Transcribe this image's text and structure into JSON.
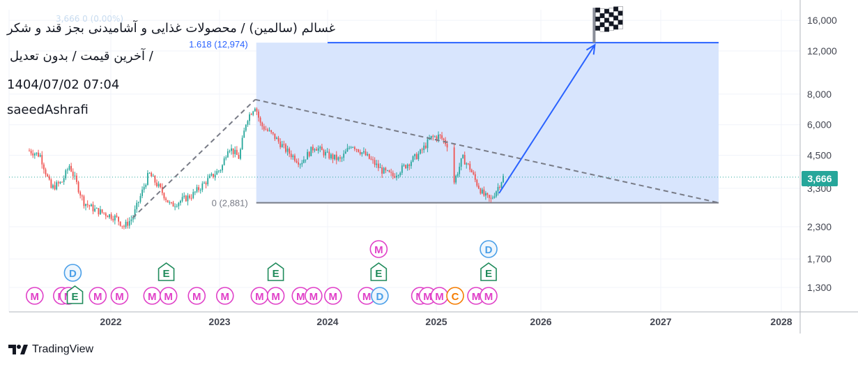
{
  "header": {
    "title": "غسالم (سالمین) / محصولات غذایی و آشامیدنی بجز قند و شکر",
    "subtitle": "آخرین قیمت / بدون تعدیل /",
    "datetime": "1404/07/02 07:04",
    "author": "saeedAshrafi"
  },
  "ghost_legend": "3,666  0  (0.00%)",
  "current_price_label": "3,666",
  "branding": {
    "name": "TradingView"
  },
  "colors": {
    "up": "#26a69a",
    "down": "#ef5350",
    "fib_fill": "#d6e4fd",
    "fib_line": "#2962ff",
    "trend_line": "#787b86",
    "marker_m": "#e040c8",
    "marker_e": "#1e8a5a",
    "marker_d": "#4a9fe8",
    "marker_c": "#f57c00"
  },
  "chart_data": {
    "type": "candlestick",
    "title": "",
    "xlabel": "",
    "ylabel": "",
    "y_scale": "log",
    "ylim": [
      1100,
      16500
    ],
    "x_ticks": [
      "2022",
      "2023",
      "2024",
      "2025",
      "2026",
      "2027",
      "2028"
    ],
    "y_ticks": [
      "1,300",
      "1,700",
      "2,300",
      "3,300",
      "4,500",
      "6,000",
      "8,000",
      "12,000",
      "16,000"
    ],
    "series": [
      {
        "name": "",
        "points": [
          {
            "t": 2021.25,
            "v": 4700
          },
          {
            "t": 2021.35,
            "v": 4500
          },
          {
            "t": 2021.45,
            "v": 3300
          },
          {
            "t": 2021.55,
            "v": 3500
          },
          {
            "t": 2021.62,
            "v": 4100
          },
          {
            "t": 2021.75,
            "v": 2900
          },
          {
            "t": 2021.85,
            "v": 2700
          },
          {
            "t": 2021.95,
            "v": 2600
          },
          {
            "t": 2022.05,
            "v": 2500
          },
          {
            "t": 2022.12,
            "v": 2300
          },
          {
            "t": 2022.2,
            "v": 2500
          },
          {
            "t": 2022.35,
            "v": 3800
          },
          {
            "t": 2022.45,
            "v": 3300
          },
          {
            "t": 2022.55,
            "v": 2800
          },
          {
            "t": 2022.65,
            "v": 2950
          },
          {
            "t": 2022.75,
            "v": 3100
          },
          {
            "t": 2022.9,
            "v": 3600
          },
          {
            "t": 2023.02,
            "v": 4000
          },
          {
            "t": 2023.08,
            "v": 4900
          },
          {
            "t": 2023.18,
            "v": 4400
          },
          {
            "t": 2023.25,
            "v": 6300
          },
          {
            "t": 2023.33,
            "v": 7200
          },
          {
            "t": 2023.38,
            "v": 6000
          },
          {
            "t": 2023.5,
            "v": 5400
          },
          {
            "t": 2023.62,
            "v": 4700
          },
          {
            "t": 2023.75,
            "v": 4200
          },
          {
            "t": 2023.88,
            "v": 4900
          },
          {
            "t": 2024.0,
            "v": 4500
          },
          {
            "t": 2024.12,
            "v": 4300
          },
          {
            "t": 2024.22,
            "v": 5000
          },
          {
            "t": 2024.35,
            "v": 4500
          },
          {
            "t": 2024.5,
            "v": 3900
          },
          {
            "t": 2024.6,
            "v": 3700
          },
          {
            "t": 2024.72,
            "v": 4100
          },
          {
            "t": 2024.85,
            "v": 4600
          },
          {
            "t": 2024.95,
            "v": 5300
          },
          {
            "t": 2025.03,
            "v": 5400
          },
          {
            "t": 2025.12,
            "v": 4900
          },
          {
            "t": 2025.17,
            "v": 3500
          },
          {
            "t": 2025.25,
            "v": 4400
          },
          {
            "t": 2025.32,
            "v": 4000
          },
          {
            "t": 2025.38,
            "v": 3500
          },
          {
            "t": 2025.45,
            "v": 3100
          },
          {
            "t": 2025.52,
            "v": 2950
          },
          {
            "t": 2025.6,
            "v": 3400
          },
          {
            "t": 2025.64,
            "v": 3666
          }
        ]
      }
    ],
    "annotations": {
      "fib_retracement": {
        "t_start": 2023.34,
        "t_end": 2027.48,
        "level_0": 2881,
        "level_0_label": "0 (2,881)",
        "level_1618": 12974,
        "level_1618_label": "1.618 (12,974)"
      },
      "trend_line_down": {
        "from": {
          "t": 2023.33,
          "v": 7600
        },
        "to": {
          "t": 2027.48,
          "v": 2881
        }
      },
      "trend_line_up": {
        "from": {
          "t": 2022.2,
          "v": 2500
        },
        "to": {
          "t": 2023.33,
          "v": 7600
        }
      },
      "projection_arrow": {
        "from": {
          "t": 2025.6,
          "v": 3150
        },
        "to": {
          "t": 2026.45,
          "v": 12700
        }
      },
      "target_flag": {
        "t": 2026.45,
        "v": 12974
      }
    },
    "event_markers": [
      {
        "label": "M",
        "t": 2021.3,
        "row": 0
      },
      {
        "label": "M",
        "t": 2021.55,
        "row": 0
      },
      {
        "label": "M",
        "t": 2021.61,
        "row": 0
      },
      {
        "label": "E",
        "t": 2021.67,
        "row": 0
      },
      {
        "label": "D",
        "t": 2021.65,
        "row": 1
      },
      {
        "label": "M",
        "t": 2021.88,
        "row": 0
      },
      {
        "label": "M",
        "t": 2022.08,
        "row": 0
      },
      {
        "label": "M",
        "t": 2022.38,
        "row": 0
      },
      {
        "label": "M",
        "t": 2022.53,
        "row": 0
      },
      {
        "label": "E",
        "t": 2022.51,
        "row": 1
      },
      {
        "label": "M",
        "t": 2022.79,
        "row": 0
      },
      {
        "label": "M",
        "t": 2023.05,
        "row": 0
      },
      {
        "label": "M",
        "t": 2023.37,
        "row": 0
      },
      {
        "label": "M",
        "t": 2023.52,
        "row": 0
      },
      {
        "label": "E",
        "t": 2023.52,
        "row": 1
      },
      {
        "label": "M",
        "t": 2023.75,
        "row": 0
      },
      {
        "label": "M",
        "t": 2023.87,
        "row": 0
      },
      {
        "label": "M",
        "t": 2024.05,
        "row": 0
      },
      {
        "label": "M",
        "t": 2024.36,
        "row": 0
      },
      {
        "label": "D",
        "t": 2024.48,
        "row": 0
      },
      {
        "label": "E",
        "t": 2024.47,
        "row": 1
      },
      {
        "label": "M",
        "t": 2024.47,
        "row": 2
      },
      {
        "label": "M",
        "t": 2024.85,
        "row": 0
      },
      {
        "label": "M",
        "t": 2024.92,
        "row": 0
      },
      {
        "label": "M",
        "t": 2025.03,
        "row": 0
      },
      {
        "label": "C",
        "t": 2025.18,
        "row": 0
      },
      {
        "label": "M",
        "t": 2025.38,
        "row": 0
      },
      {
        "label": "M",
        "t": 2025.5,
        "row": 0
      },
      {
        "label": "E",
        "t": 2025.5,
        "row": 1
      },
      {
        "label": "D",
        "t": 2025.5,
        "row": 2
      }
    ]
  }
}
